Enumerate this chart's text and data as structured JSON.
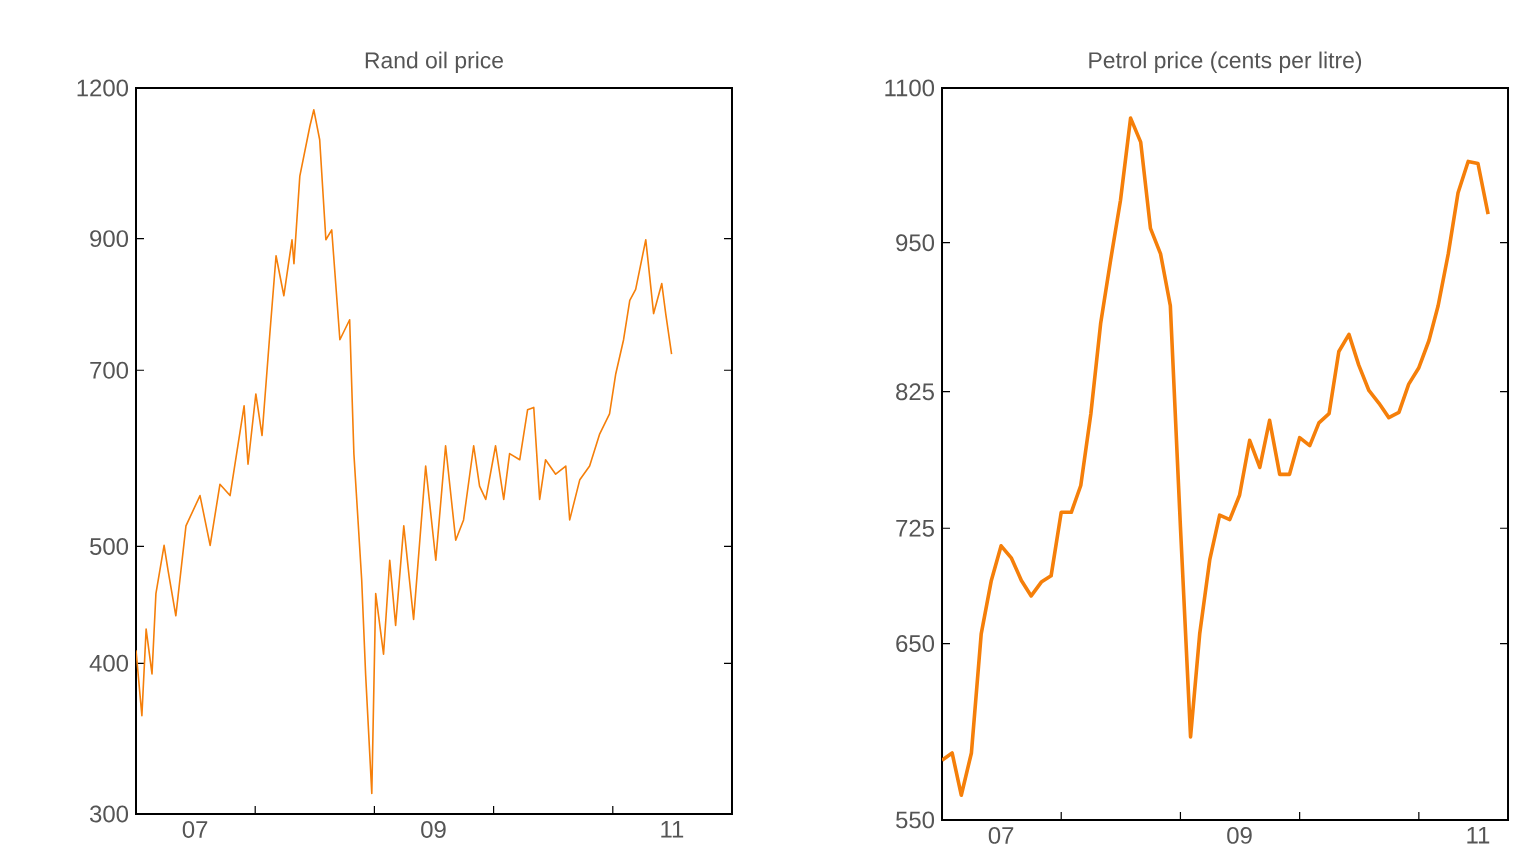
{
  "chart_data": [
    {
      "type": "line",
      "title": "Rand oil price",
      "log": true,
      "color": "#f57f0a",
      "x": [
        "2007-01-01",
        "2007-01-19",
        "2007-02-01",
        "2007-02-19",
        "2007-03-03",
        "2007-03-28",
        "2007-04-09",
        "2007-05-03",
        "2007-06-03",
        "2007-07-16",
        "2007-08-16",
        "2007-09-15",
        "2007-10-16",
        "2007-11-28",
        "2007-12-10",
        "2008-01-03",
        "2008-01-22",
        "2008-02-15",
        "2008-03-05",
        "2008-03-29",
        "2008-04-23",
        "2008-04-29",
        "2008-05-17",
        "2008-06-17",
        "2008-06-29",
        "2008-07-17",
        "2008-08-05",
        "2008-08-23",
        "2008-09-17",
        "2008-10-17",
        "2008-10-30",
        "2008-11-23",
        "2008-12-05",
        "2008-12-24",
        "2009-01-05",
        "2009-01-29",
        "2009-02-17",
        "2009-03-07",
        "2009-04-01",
        "2009-05-01",
        "2009-06-07",
        "2009-07-08",
        "2009-08-07",
        "2009-09-07",
        "2009-10-01",
        "2009-11-01",
        "2009-11-19",
        "2009-12-08",
        "2010-01-07",
        "2010-02-01",
        "2010-02-19",
        "2010-03-22",
        "2010-04-15",
        "2010-05-04",
        "2010-05-22",
        "2010-06-09",
        "2010-07-10",
        "2010-08-10",
        "2010-08-22",
        "2010-09-22",
        "2010-10-22",
        "2010-11-22",
        "2010-12-22",
        "2011-01-10",
        "2011-02-03",
        "2011-02-22",
        "2011-03-12",
        "2011-04-12",
        "2011-05-06",
        "2011-05-31",
        "2011-06-12",
        "2011-06-30"
      ],
      "values": [
        410,
        362,
        427,
        392,
        457,
        501,
        478,
        438,
        520,
        551,
        501,
        563,
        551,
        654,
        585,
        669,
        618,
        751,
        871,
        807,
        898,
        858,
        1014,
        1116,
        1151,
        1087,
        898,
        915,
        742,
        771,
        597,
        469,
        392,
        312,
        457,
        407,
        487,
        430,
        520,
        435,
        583,
        487,
        606,
        506,
        526,
        606,
        561,
        547,
        606,
        547,
        597,
        590,
        649,
        652,
        547,
        590,
        574,
        583,
        526,
        568,
        583,
        620,
        644,
        695,
        742,
        800,
        817,
        898,
        780,
        826,
        780,
        722
      ],
      "xlim": [
        "2007-01-01",
        "2012-01-01"
      ],
      "xticks": [
        {
          "value": "2007-07-01",
          "label": "07"
        },
        {
          "value": "2008-01-01",
          "label": null
        },
        {
          "value": "2009-01-01",
          "label": null
        },
        {
          "value": "2009-07-01",
          "label": "09"
        },
        {
          "value": "2010-01-01",
          "label": null
        },
        {
          "value": "2011-01-01",
          "label": null
        },
        {
          "value": "2011-07-01",
          "label": "11"
        }
      ],
      "ylim": [
        300,
        1200
      ],
      "yticks": [
        300,
        400,
        500,
        700,
        900,
        1200
      ]
    },
    {
      "type": "line",
      "title": "Petrol price (cents per litre)",
      "log": true,
      "color": "#f57f0a",
      "x": [
        "2007-01",
        "2007-02",
        "2007-03",
        "2007-04",
        "2007-05",
        "2007-06",
        "2007-07",
        "2007-08",
        "2007-09",
        "2007-10",
        "2007-11",
        "2007-12",
        "2008-01",
        "2008-02",
        "2008-03",
        "2008-04",
        "2008-05",
        "2008-06",
        "2008-07",
        "2008-08",
        "2008-09",
        "2008-10",
        "2008-11",
        "2008-12",
        "2009-01",
        "2009-02",
        "2009-03",
        "2009-04",
        "2009-05",
        "2009-06",
        "2009-07",
        "2009-08",
        "2009-09",
        "2009-10",
        "2009-11",
        "2009-12",
        "2010-01",
        "2010-02",
        "2010-03",
        "2010-04",
        "2010-05",
        "2010-06",
        "2010-07",
        "2010-08",
        "2010-09",
        "2010-10",
        "2010-11",
        "2010-12",
        "2011-01",
        "2011-02",
        "2011-03",
        "2011-04",
        "2011-05",
        "2011-06",
        "2011-07",
        "2011-08"
      ],
      "values": [
        582,
        586,
        563,
        586,
        656,
        690,
        713,
        705,
        690,
        680,
        689,
        693,
        736,
        736,
        755,
        808,
        880,
        935,
        989,
        1069,
        1045,
        963,
        940,
        895,
        726,
        595,
        656,
        704,
        734,
        731,
        748,
        788,
        768,
        803,
        763,
        763,
        790,
        784,
        801,
        808,
        857,
        871,
        846,
        826,
        816,
        805,
        809,
        831,
        844,
        866,
        895,
        940,
        996,
        1026,
        1024,
        976
      ],
      "xlim": [
        "2007-01-01",
        "2011-10-01"
      ],
      "xticks": [
        {
          "value": "2007-07-01",
          "label": "07"
        },
        {
          "value": "2008-01-01",
          "label": null
        },
        {
          "value": "2009-01-01",
          "label": null
        },
        {
          "value": "2009-07-01",
          "label": "09"
        },
        {
          "value": "2010-01-01",
          "label": null
        },
        {
          "value": "2011-01-01",
          "label": null
        },
        {
          "value": "2011-07-01",
          "label": "11"
        }
      ],
      "ylim": [
        550,
        1100
      ],
      "yticks": [
        550,
        650,
        725,
        825,
        950,
        1100
      ]
    }
  ]
}
